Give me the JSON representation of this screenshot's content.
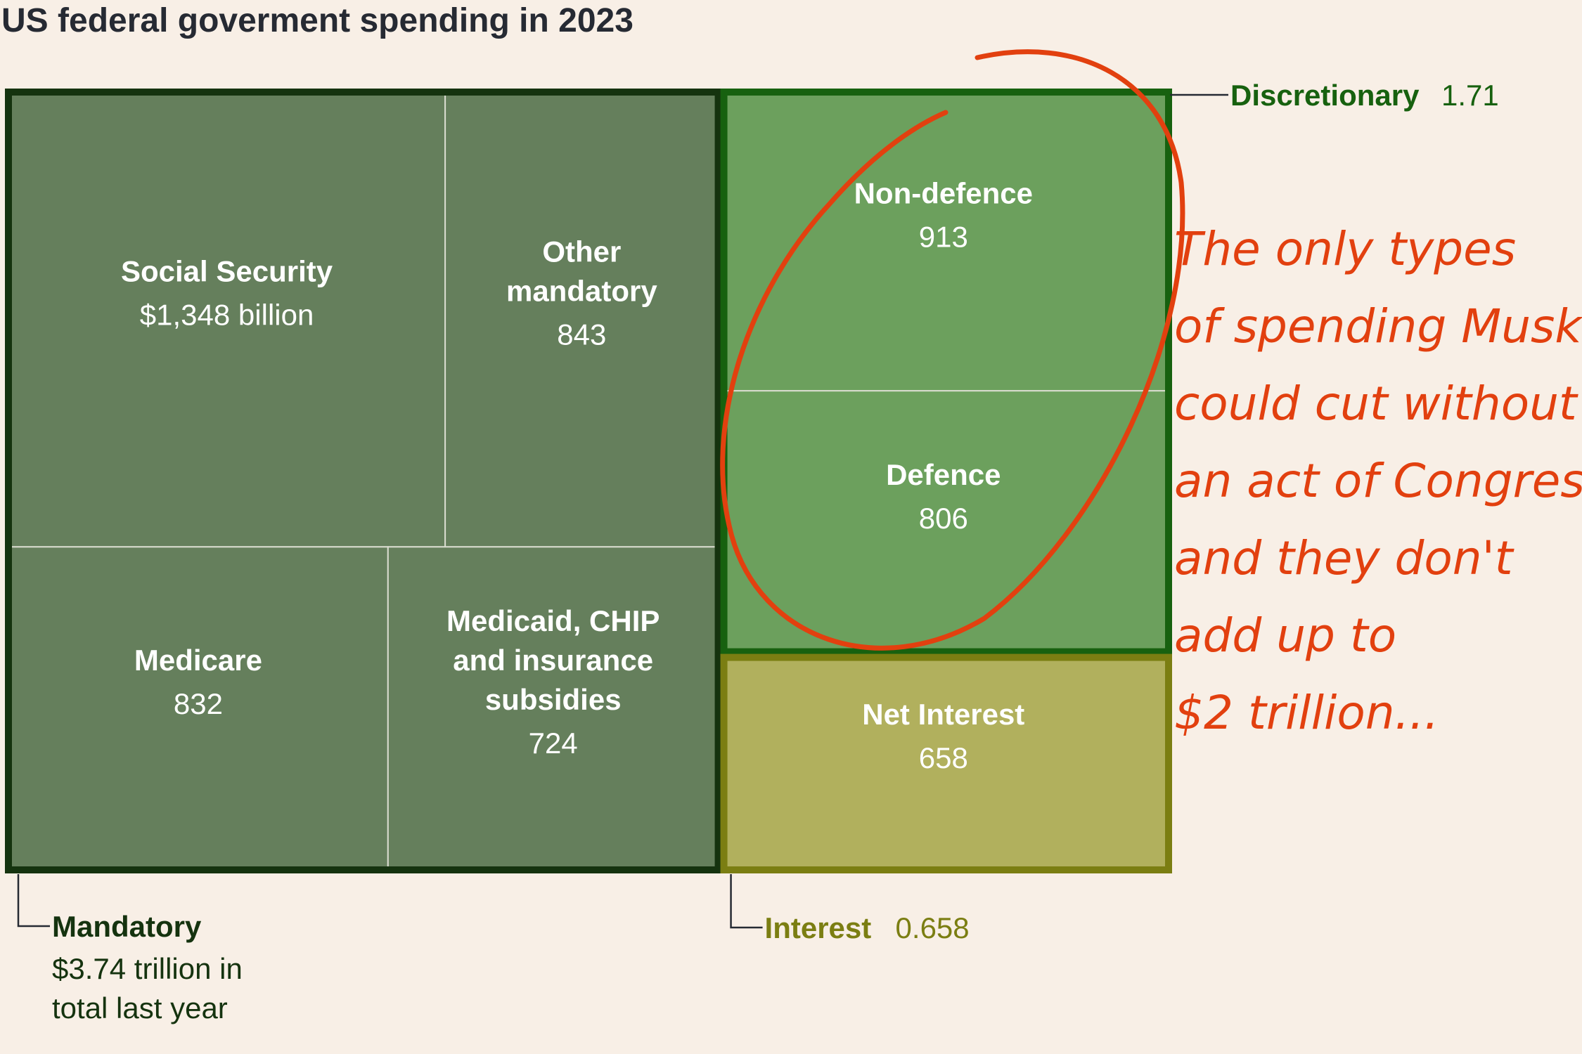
{
  "chart_data": {
    "type": "treemap",
    "title": "US federal goverment spending in 2023",
    "unit": "billion",
    "groups": [
      {
        "name": "Mandatory",
        "summary_lines": [
          "$3.74 trillion in",
          "total last year"
        ],
        "color": "#657f5c",
        "border_color": "#15330f",
        "label_color": "#15330f",
        "items": [
          {
            "name_lines": [
              "Social Security"
            ],
            "value": 1348,
            "value_label": "$1,348 billion"
          },
          {
            "name_lines": [
              "Other",
              "mandatory"
            ],
            "value": 843,
            "value_label": "843"
          },
          {
            "name_lines": [
              "Medicare"
            ],
            "value": 832,
            "value_label": "832"
          },
          {
            "name_lines": [
              "Medicaid, CHIP",
              "and insurance",
              "subsidies"
            ],
            "value": 724,
            "value_label": "724"
          }
        ]
      },
      {
        "name": "Discretionary",
        "total_label": "1.71",
        "color": "#6ca05d",
        "border_color": "#17610f",
        "label_color": "#17610f",
        "items": [
          {
            "name_lines": [
              "Non-defence"
            ],
            "value": 913,
            "value_label": "913"
          },
          {
            "name_lines": [
              "Defence"
            ],
            "value": 806,
            "value_label": "806"
          }
        ]
      },
      {
        "name": "Interest",
        "total_label": "0.658",
        "color": "#b1b05d",
        "border_color": "#7b7e12",
        "label_color": "#7b7e12",
        "items": [
          {
            "name_lines": [
              "Net Interest"
            ],
            "value": 658,
            "value_label": "658"
          }
        ]
      }
    ]
  },
  "annotation": {
    "lines": [
      "The only types",
      "of spending Musk",
      "could cut without",
      "an act of Congress",
      "and they don't",
      "add up to",
      "$2 trillion..."
    ],
    "color": "#e2400f"
  }
}
